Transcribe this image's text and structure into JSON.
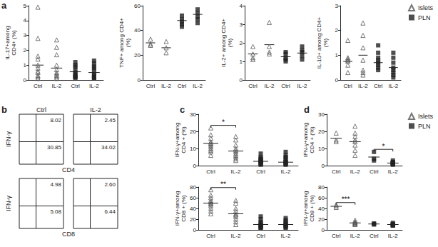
{
  "chart_data": [
    {
      "type": "scatter",
      "panel_label": "a",
      "ylabel": "IL-17+among\nCD4+ (%)",
      "categories": [
        "Ctrl",
        "IL-2",
        "Ctrl",
        "IL-2"
      ],
      "ylim": [
        0,
        5
      ],
      "yticks": [
        0,
        1,
        2,
        3,
        4,
        5
      ],
      "series": [
        {
          "name": "Islets",
          "marker": "triangle",
          "color": "#555555",
          "values": [
            [
              4.9,
              2.8,
              1.6,
              1.4,
              1.0,
              0.8,
              0.6,
              0.5,
              0.3,
              0.2,
              0.1
            ],
            [
              2.7,
              2.2,
              1.7,
              1.0,
              0.7,
              0.5,
              0.4,
              0.3,
              0.2,
              0.1
            ],
            [],
            []
          ],
          "means": [
            1.0,
            0.8,
            null,
            null
          ]
        },
        {
          "name": "PLN",
          "marker": "square",
          "color": "#222222",
          "values": [
            [],
            [],
            [
              1.2,
              1.0,
              0.9,
              0.7,
              0.5,
              0.4,
              0.3,
              0.2,
              0.2,
              0.1
            ],
            [
              1.3,
              1.1,
              0.9,
              0.8,
              0.6,
              0.4,
              0.3,
              0.2,
              0.1,
              0.1
            ]
          ],
          "means": [
            null,
            null,
            0.55,
            0.5
          ]
        }
      ]
    },
    {
      "type": "scatter",
      "ylabel": "TNF+ among CD4+\n(%)",
      "categories": [
        "Ctrl",
        "IL-2",
        "Ctrl",
        "IL-2"
      ],
      "ylim": [
        0,
        60
      ],
      "yticks": [
        0,
        20,
        40,
        60
      ],
      "series": [
        {
          "name": "Islets",
          "marker": "triangle",
          "color": "#555555",
          "values": [
            [
              33,
              29,
              28
            ],
            [
              31,
              26,
              22
            ],
            [],
            []
          ],
          "means": [
            30,
            26,
            null,
            null
          ]
        },
        {
          "name": "PLN",
          "marker": "square",
          "color": "#222222",
          "values": [
            [],
            [],
            [
              52,
              49,
              47,
              45,
              43
            ],
            [
              57,
              54,
              51,
              49,
              46
            ]
          ],
          "means": [
            null,
            null,
            48,
            53
          ]
        }
      ]
    },
    {
      "type": "scatter",
      "ylabel": "IL-2+ among CD4+\n(%)",
      "categories": [
        "Ctrl",
        "IL-2",
        "Ctrl",
        "IL-2"
      ],
      "ylim": [
        0,
        4
      ],
      "yticks": [
        0,
        1,
        2,
        3,
        4
      ],
      "series": [
        {
          "name": "Islets",
          "marker": "triangle",
          "color": "#555555",
          "values": [
            [
              1.8,
              1.4,
              1.2,
              1.1
            ],
            [
              3.1,
              1.8,
              1.5,
              1.4
            ],
            [],
            []
          ],
          "means": [
            1.4,
            1.9,
            null,
            null
          ]
        },
        {
          "name": "PLN",
          "marker": "square",
          "color": "#222222",
          "values": [
            [],
            [],
            [
              1.5,
              1.4,
              1.2,
              1.1,
              1.0
            ],
            [
              1.8,
              1.6,
              1.5,
              1.3,
              1.1
            ]
          ],
          "means": [
            null,
            null,
            1.25,
            1.45
          ]
        }
      ]
    },
    {
      "type": "scatter",
      "ylabel": "IL-10+ among CD4+\n(%)",
      "legend": "upper right",
      "categories": [
        "Ctrl",
        "IL-2",
        "Ctrl",
        "IL-2"
      ],
      "ylim": [
        0,
        3
      ],
      "yticks": [
        0,
        1,
        2,
        3
      ],
      "series": [
        {
          "name": "Islets",
          "marker": "triangle",
          "color": "#555555",
          "values": [
            [
              1.6,
              0.9,
              0.85,
              0.8,
              0.75,
              0.6,
              0.3
            ],
            [
              2.3,
              1.8,
              1.3,
              0.8,
              0.4,
              0.3,
              0.2
            ],
            [],
            []
          ],
          "means": [
            0.75,
            1.0,
            null,
            null
          ]
        },
        {
          "name": "PLN",
          "marker": "square",
          "color": "#222222",
          "values": [
            [],
            [],
            [
              1.4,
              1.1,
              0.9,
              0.8,
              0.7,
              0.6,
              0.5,
              0.4
            ],
            [
              1.1,
              0.9,
              0.7,
              0.5,
              0.4,
              0.3,
              0.2,
              0.1
            ]
          ],
          "means": [
            null,
            null,
            0.7,
            0.5
          ]
        }
      ]
    },
    {
      "type": "flow",
      "panel_label": "b",
      "columns": [
        "Ctrl",
        "IL-2"
      ],
      "rows": [
        {
          "ylabel": "IFN-γ",
          "xlabel": "CD4",
          "plots": [
            {
              "upper_right": 8.02,
              "lower_right": 30.85
            },
            {
              "upper_right": 2.45,
              "lower_right": 34.02
            }
          ]
        },
        {
          "ylabel": "IFN-γ",
          "xlabel": "CD8",
          "plots": [
            {
              "upper_right": 4.98,
              "lower_right": 5.08
            },
            {
              "upper_right": {
                "value": 2.6,
                "label": "2.60"
              },
              "lower_right": 6.44
            }
          ]
        }
      ]
    },
    {
      "type": "scatter",
      "panel_label": "c",
      "ylabel": "IFN-γ+among\nCD4 + (%)",
      "categories": [
        "Ctrl",
        "IL-2",
        "Ctrl",
        "IL-2"
      ],
      "ylim": [
        0,
        30
      ],
      "yticks": [
        0,
        10,
        20,
        30
      ],
      "annotations": [
        {
          "text": "*",
          "from": 0,
          "to": 1
        }
      ],
      "series": [
        {
          "name": "Islets",
          "marker": "triangle",
          "color": "#555555",
          "values": [
            [
              22,
              18,
              16,
              14,
              13,
              13,
              12,
              11,
              10,
              9,
              8,
              6
            ],
            [
              17,
              15,
              12,
              10,
              9,
              8,
              7,
              6,
              5,
              4,
              3
            ],
            [],
            []
          ],
          "means": [
            13,
            8.5,
            null,
            null
          ]
        },
        {
          "name": "PLN",
          "marker": "square",
          "color": "#222222",
          "values": [
            [],
            [],
            [
              7,
              5,
              4,
              4,
              3,
              3,
              2,
              2,
              1,
              1,
              0.5
            ],
            [
              8,
              6,
              5,
              4,
              3,
              2,
              2,
              1,
              1,
              0.5
            ]
          ],
          "means": [
            null,
            null,
            2.5,
            2
          ]
        }
      ]
    },
    {
      "type": "scatter",
      "ylabel": "IFN-γ+among\nCD8 + (%)",
      "categories": [
        "Ctrl",
        "IL-2",
        "Ctrl",
        "IL-2"
      ],
      "ylim": [
        0,
        80
      ],
      "yticks": [
        0,
        20,
        40,
        60,
        80
      ],
      "annotations": [
        {
          "text": "**",
          "from": 0,
          "to": 1
        }
      ],
      "series": [
        {
          "name": "Islets",
          "marker": "triangle",
          "color": "#555555",
          "values": [
            [
              75,
              65,
              60,
              55,
              52,
              50,
              48,
              45,
              40,
              35,
              30
            ],
            [
              55,
              50,
              40,
              35,
              30,
              28,
              25,
              20,
              15,
              10
            ],
            [],
            []
          ],
          "means": [
            50,
            30,
            null,
            null
          ]
        },
        {
          "name": "PLN",
          "marker": "square",
          "color": "#222222",
          "values": [
            [],
            [],
            [
              25,
              20,
              15,
              12,
              10,
              8,
              7,
              5,
              4,
              3
            ],
            [
              22,
              18,
              15,
              12,
              10,
              8,
              7,
              5,
              4
            ]
          ],
          "means": [
            null,
            null,
            10,
            10
          ]
        }
      ]
    },
    {
      "type": "scatter",
      "panel_label": "d",
      "ylabel": "IFN-γ+among\nCD4 + (%)",
      "legend": "upper right",
      "categories": [
        "Ctrl",
        "IL-2",
        "Ctrl",
        "IL-2"
      ],
      "ylim": [
        0,
        30
      ],
      "yticks": [
        0,
        10,
        20,
        30
      ],
      "annotations": [
        {
          "text": "*",
          "from": 2,
          "to": 3
        }
      ],
      "series": [
        {
          "name": "Islets",
          "marker": "triangle",
          "color": "#555555",
          "values": [
            [
              19,
              15,
              14
            ],
            [
              23,
              19,
              17,
              15,
              14,
              12,
              9,
              6
            ],
            [],
            []
          ],
          "means": [
            16,
            14,
            null,
            null
          ]
        },
        {
          "name": "PLN",
          "marker": "square",
          "color": "#222222",
          "values": [
            [],
            [],
            [
              8,
              4,
              3
            ],
            [
              3,
              2,
              2,
              1.5,
              1.5,
              1,
              1,
              1,
              0.5
            ]
          ],
          "means": [
            null,
            null,
            5,
            1.5
          ]
        }
      ]
    },
    {
      "type": "scatter",
      "ylabel": "IFN-γ+among\nCD8 + (%)",
      "categories": [
        "Ctrl",
        "IL-2",
        "Ctrl",
        "IL-2"
      ],
      "ylim": [
        0,
        80
      ],
      "yticks": [
        0,
        20,
        40,
        60,
        80
      ],
      "annotations": [
        {
          "text": "***",
          "from": 0,
          "to": 1
        }
      ],
      "series": [
        {
          "name": "Islets",
          "marker": "triangle",
          "color": "#555555",
          "values": [
            [
              47,
              45,
              42
            ],
            [
              18,
              15,
              14,
              13,
              12,
              11,
              10
            ],
            [],
            []
          ],
          "means": [
            44,
            13,
            null,
            null
          ]
        },
        {
          "name": "PLN",
          "marker": "square",
          "color": "#222222",
          "values": [
            [],
            [],
            [
              12,
              11,
              10
            ],
            [
              13,
              11,
              10,
              10,
              9,
              8,
              8
            ]
          ],
          "means": [
            null,
            null,
            11,
            10
          ]
        }
      ]
    }
  ]
}
